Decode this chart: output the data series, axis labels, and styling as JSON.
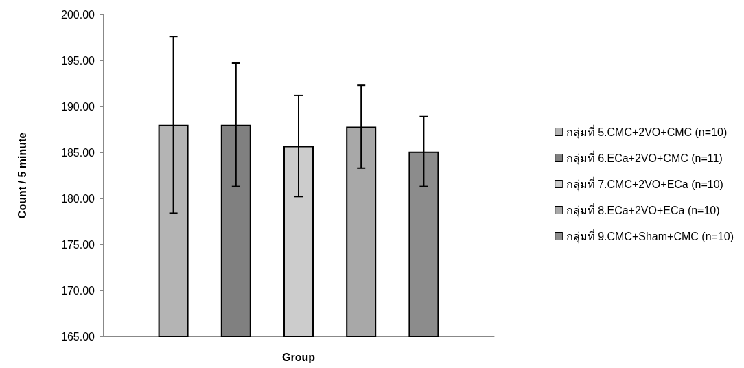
{
  "chart_data": {
    "type": "bar",
    "xlabel": "Group",
    "ylabel": "Count / 5 minute",
    "categories": [
      null
    ],
    "series": [
      {
        "name": "กลุ่มที่ 5.CMC+2VO+CMC (n=10)",
        "color": "#b4b4b4",
        "values": [
          188.0
        ],
        "errors": [
          9.6
        ]
      },
      {
        "name": "กลุ่มที่ 6.ECa+2VO+CMC (n=11)",
        "color": "#808080",
        "values": [
          188.0
        ],
        "errors": [
          6.7
        ]
      },
      {
        "name": "กลุ่มที่ 7.CMC+2VO+ECa (n=10)",
        "color": "#cccccc",
        "values": [
          185.7
        ],
        "errors": [
          5.5
        ]
      },
      {
        "name": "กลุ่มที่ 8.ECa+2VO+ECa (n=10)",
        "color": "#a8a8a8",
        "values": [
          187.8
        ],
        "errors": [
          4.5
        ]
      },
      {
        "name": "กลุ่มที่ 9.CMC+Sham+CMC (n=10)",
        "color": "#8c8c8c",
        "values": [
          185.1
        ],
        "errors": [
          3.8
        ]
      }
    ],
    "ylim": [
      165,
      200
    ],
    "yticks": [
      {
        "value": 165,
        "label": "165.00"
      },
      {
        "value": 170,
        "label": "170.00"
      },
      {
        "value": 175,
        "label": "175.00"
      },
      {
        "value": 180,
        "label": "180.00"
      },
      {
        "value": 185,
        "label": "185.00"
      },
      {
        "value": 190,
        "label": "190.00"
      },
      {
        "value": 195,
        "label": "195.00"
      },
      {
        "value": 200,
        "label": "200.00"
      }
    ],
    "grid": false,
    "legend": "right"
  }
}
